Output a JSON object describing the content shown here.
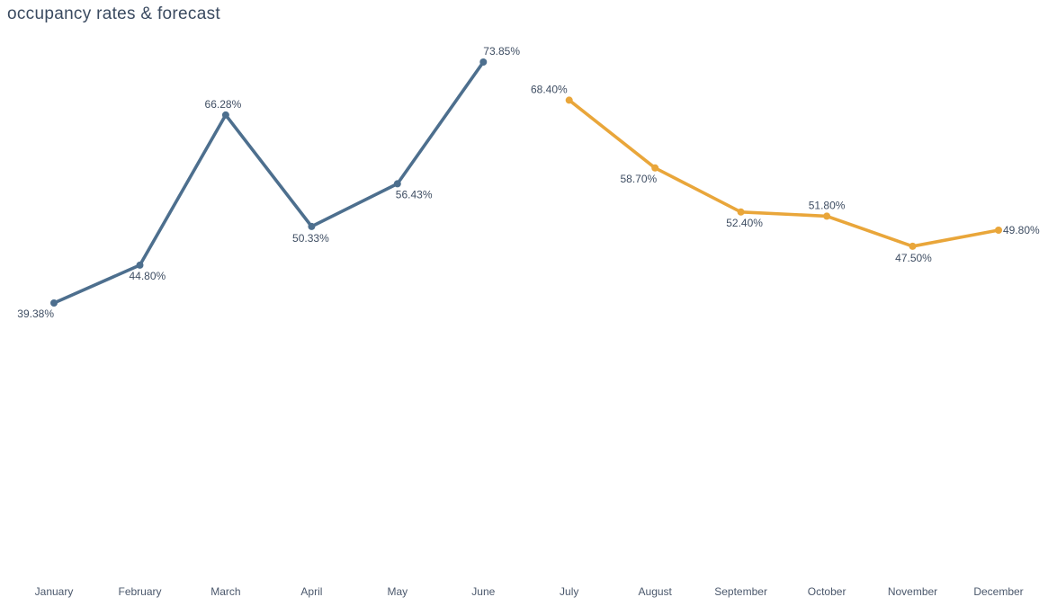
{
  "page": {
    "title": "occupancy rates & forecast"
  },
  "colors": {
    "actual": "#4d6f8e",
    "forecast": "#e9a63a",
    "data_label": "#3f4e63",
    "axis_label": "#4b586c",
    "title": "#3a4a60",
    "background": "#ffffff"
  },
  "chart_data": {
    "type": "line",
    "title": "occupancy rates & forecast",
    "xlabel": "",
    "ylabel": "",
    "grid": false,
    "legend": false,
    "value_format": "percent",
    "ylim": [
      39.38,
      73.85
    ],
    "categories": [
      "January",
      "February",
      "March",
      "April",
      "May",
      "June",
      "July",
      "August",
      "September",
      "October",
      "November",
      "December"
    ],
    "series": [
      {
        "name": "occupancy",
        "color_key": "actual",
        "points": [
          {
            "month": "January",
            "value": 39.38,
            "label": "39.38%",
            "anchor": "end",
            "dx": 0,
            "dy": 16
          },
          {
            "month": "February",
            "value": 44.8,
            "label": "44.80%",
            "anchor": "start",
            "dx": -12,
            "dy": 16
          },
          {
            "month": "March",
            "value": 66.28,
            "label": "66.28%",
            "anchor": "middle",
            "dx": -3,
            "dy": -8
          },
          {
            "month": "April",
            "value": 50.33,
            "label": "50.33%",
            "anchor": "middle",
            "dx": -1,
            "dy": 17
          },
          {
            "month": "May",
            "value": 56.43,
            "label": "56.43%",
            "anchor": "start",
            "dx": -2,
            "dy": 16
          },
          {
            "month": "June",
            "value": 73.85,
            "label": "73.85%",
            "anchor": "start",
            "dx": 0,
            "dy": -8
          }
        ]
      },
      {
        "name": "forecast",
        "color_key": "forecast",
        "points": [
          {
            "month": "July",
            "value": 68.4,
            "label": "68.40%",
            "anchor": "end",
            "dx": -2,
            "dy": -8
          },
          {
            "month": "August",
            "value": 58.7,
            "label": "58.70%",
            "anchor": "end",
            "dx": 2,
            "dy": 16
          },
          {
            "month": "September",
            "value": 52.4,
            "label": "52.40%",
            "anchor": "middle",
            "dx": 4,
            "dy": 16
          },
          {
            "month": "October",
            "value": 51.8,
            "label": "51.80%",
            "anchor": "middle",
            "dx": 0,
            "dy": -8
          },
          {
            "month": "November",
            "value": 47.5,
            "label": "47.50%",
            "anchor": "middle",
            "dx": 1,
            "dy": 17
          },
          {
            "month": "December",
            "value": 49.8,
            "label": "49.80%",
            "anchor": "start",
            "dx": 5,
            "dy": 4
          }
        ]
      }
    ]
  }
}
